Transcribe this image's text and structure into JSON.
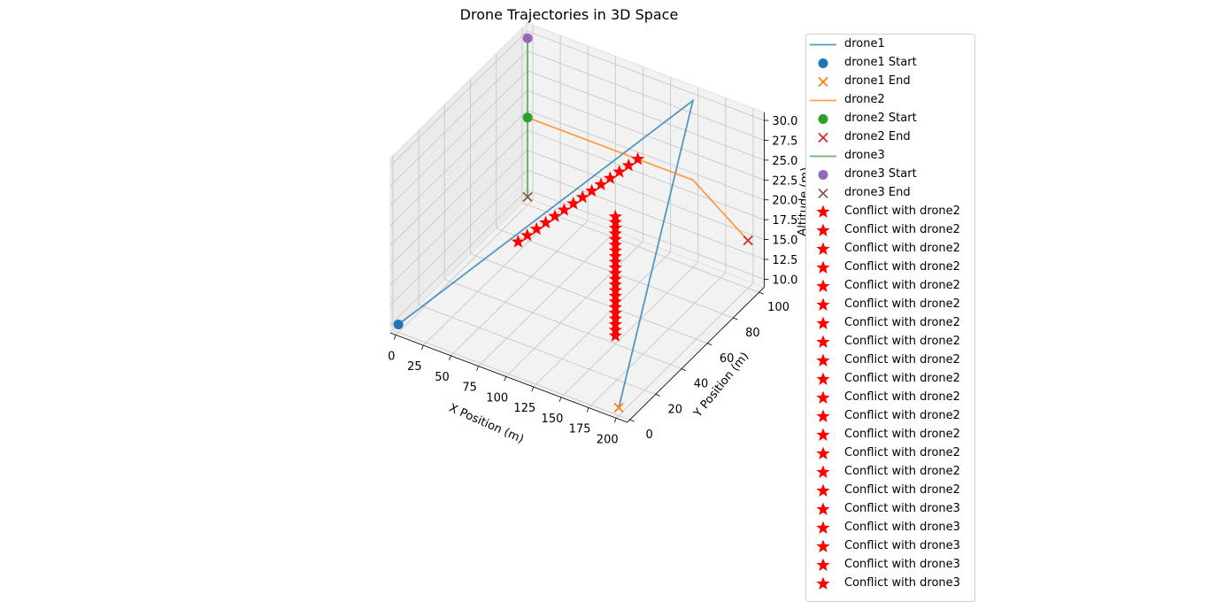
{
  "chart_data": {
    "type": "line-3d",
    "title": "Drone Trajectories in 3D Space",
    "xlabel": "X Position (m)",
    "ylabel": "Y Position (m)",
    "zlabel": "Altitude (m)",
    "x_ticks": [
      "0",
      "25",
      "50",
      "75",
      "100",
      "125",
      "150",
      "175",
      "200"
    ],
    "y_ticks": [
      "0",
      "20",
      "40",
      "60",
      "80",
      "100"
    ],
    "z_ticks": [
      "10.0",
      "12.5",
      "15.0",
      "17.5",
      "20.0",
      "22.5",
      "25.0",
      "27.5",
      "30.0"
    ],
    "grid": true,
    "legend_position": "right",
    "series": [
      {
        "name": "drone1",
        "kind": "line",
        "color": "#1f77b4",
        "start_label": "drone1 Start",
        "end_label": "drone1 End",
        "start_color": "#1f77b4",
        "end_color": "#ff7f0e",
        "points": [
          [
            0,
            0,
            10
          ],
          [
            150,
            100,
            30
          ],
          [
            200,
            0,
            10
          ]
        ]
      },
      {
        "name": "drone2",
        "kind": "line",
        "color": "#ff7f0e",
        "start_label": "drone2 Start",
        "end_label": "drone2 End",
        "start_color": "#2ca02c",
        "end_color": "#d62728",
        "points": [
          [
            0,
            100,
            20
          ],
          [
            150,
            100,
            20
          ],
          [
            200,
            100,
            15
          ]
        ]
      },
      {
        "name": "drone3",
        "kind": "line",
        "color": "#2ca02c",
        "start_label": "drone3 Start",
        "end_label": "drone3 End",
        "start_color": "#9467bd",
        "end_color": "#8c564b",
        "points": [
          [
            0,
            100,
            30
          ],
          [
            0,
            100,
            10
          ]
        ]
      }
    ],
    "conflicts": {
      "color": "#ff0000",
      "drone2_label": "Conflict with drone2",
      "drone2_count": 16,
      "drone3_label": "Conflict with drone3",
      "drone3_count": 5,
      "groups": [
        {
          "from": [
            50,
            50,
            15
          ],
          "to": [
            100,
            100,
            20
          ],
          "count": 14
        },
        {
          "from": [
            150,
            40,
            10
          ],
          "to": [
            150,
            40,
            25
          ],
          "count": 22
        }
      ]
    }
  },
  "legend_entries": [
    {
      "label": "drone1",
      "marker": "line",
      "color": "#1f77b4"
    },
    {
      "label": "drone1 Start",
      "marker": "circle",
      "color": "#1f77b4"
    },
    {
      "label": "drone1 End",
      "marker": "x",
      "color": "#ff7f0e"
    },
    {
      "label": "drone2",
      "marker": "line",
      "color": "#ff7f0e"
    },
    {
      "label": "drone2 Start",
      "marker": "circle",
      "color": "#2ca02c"
    },
    {
      "label": "drone2 End",
      "marker": "x",
      "color": "#d62728"
    },
    {
      "label": "drone3",
      "marker": "line",
      "color": "#2ca02c"
    },
    {
      "label": "drone3 Start",
      "marker": "circle",
      "color": "#9467bd"
    },
    {
      "label": "drone3 End",
      "marker": "x",
      "color": "#8c564b"
    },
    {
      "label": "Conflict with drone2",
      "marker": "star",
      "color": "#ff0000"
    },
    {
      "label": "Conflict with drone2",
      "marker": "star",
      "color": "#ff0000"
    },
    {
      "label": "Conflict with drone2",
      "marker": "star",
      "color": "#ff0000"
    },
    {
      "label": "Conflict with drone2",
      "marker": "star",
      "color": "#ff0000"
    },
    {
      "label": "Conflict with drone2",
      "marker": "star",
      "color": "#ff0000"
    },
    {
      "label": "Conflict with drone2",
      "marker": "star",
      "color": "#ff0000"
    },
    {
      "label": "Conflict with drone2",
      "marker": "star",
      "color": "#ff0000"
    },
    {
      "label": "Conflict with drone2",
      "marker": "star",
      "color": "#ff0000"
    },
    {
      "label": "Conflict with drone2",
      "marker": "star",
      "color": "#ff0000"
    },
    {
      "label": "Conflict with drone2",
      "marker": "star",
      "color": "#ff0000"
    },
    {
      "label": "Conflict with drone2",
      "marker": "star",
      "color": "#ff0000"
    },
    {
      "label": "Conflict with drone2",
      "marker": "star",
      "color": "#ff0000"
    },
    {
      "label": "Conflict with drone2",
      "marker": "star",
      "color": "#ff0000"
    },
    {
      "label": "Conflict with drone2",
      "marker": "star",
      "color": "#ff0000"
    },
    {
      "label": "Conflict with drone2",
      "marker": "star",
      "color": "#ff0000"
    },
    {
      "label": "Conflict with drone2",
      "marker": "star",
      "color": "#ff0000"
    },
    {
      "label": "Conflict with drone3",
      "marker": "star",
      "color": "#ff0000"
    },
    {
      "label": "Conflict with drone3",
      "marker": "star",
      "color": "#ff0000"
    },
    {
      "label": "Conflict with drone3",
      "marker": "star",
      "color": "#ff0000"
    },
    {
      "label": "Conflict with drone3",
      "marker": "star",
      "color": "#ff0000"
    },
    {
      "label": "Conflict with drone3",
      "marker": "star",
      "color": "#ff0000"
    }
  ]
}
